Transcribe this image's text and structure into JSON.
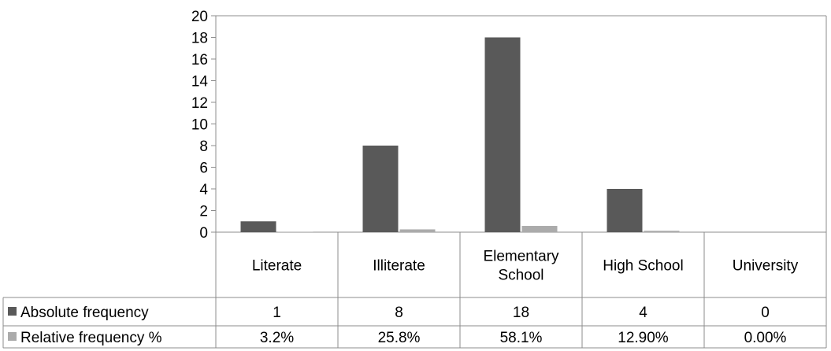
{
  "chart_data": {
    "type": "bar",
    "categories": [
      [
        "Literate"
      ],
      [
        "Illiterate"
      ],
      [
        "Elementary",
        "School"
      ],
      [
        "High School"
      ],
      [
        "University"
      ]
    ],
    "ylim": [
      0,
      20
    ],
    "yticks": [
      0,
      2,
      4,
      6,
      8,
      10,
      12,
      14,
      16,
      18,
      20
    ],
    "grid": false,
    "legend": "data-table",
    "series": [
      {
        "name": "Absolute frequency",
        "color": "#595959",
        "values": [
          1,
          8,
          18,
          4,
          0
        ],
        "labels": [
          "1",
          "8",
          "18",
          "4",
          "0"
        ]
      },
      {
        "name": "Relative frequency %",
        "color": "#ababab",
        "values": [
          0.032,
          0.258,
          0.581,
          0.129,
          0.0
        ],
        "labels": [
          "3.2%",
          "25.8%",
          "58.1%",
          "12.90%",
          "0.00%"
        ]
      }
    ]
  }
}
